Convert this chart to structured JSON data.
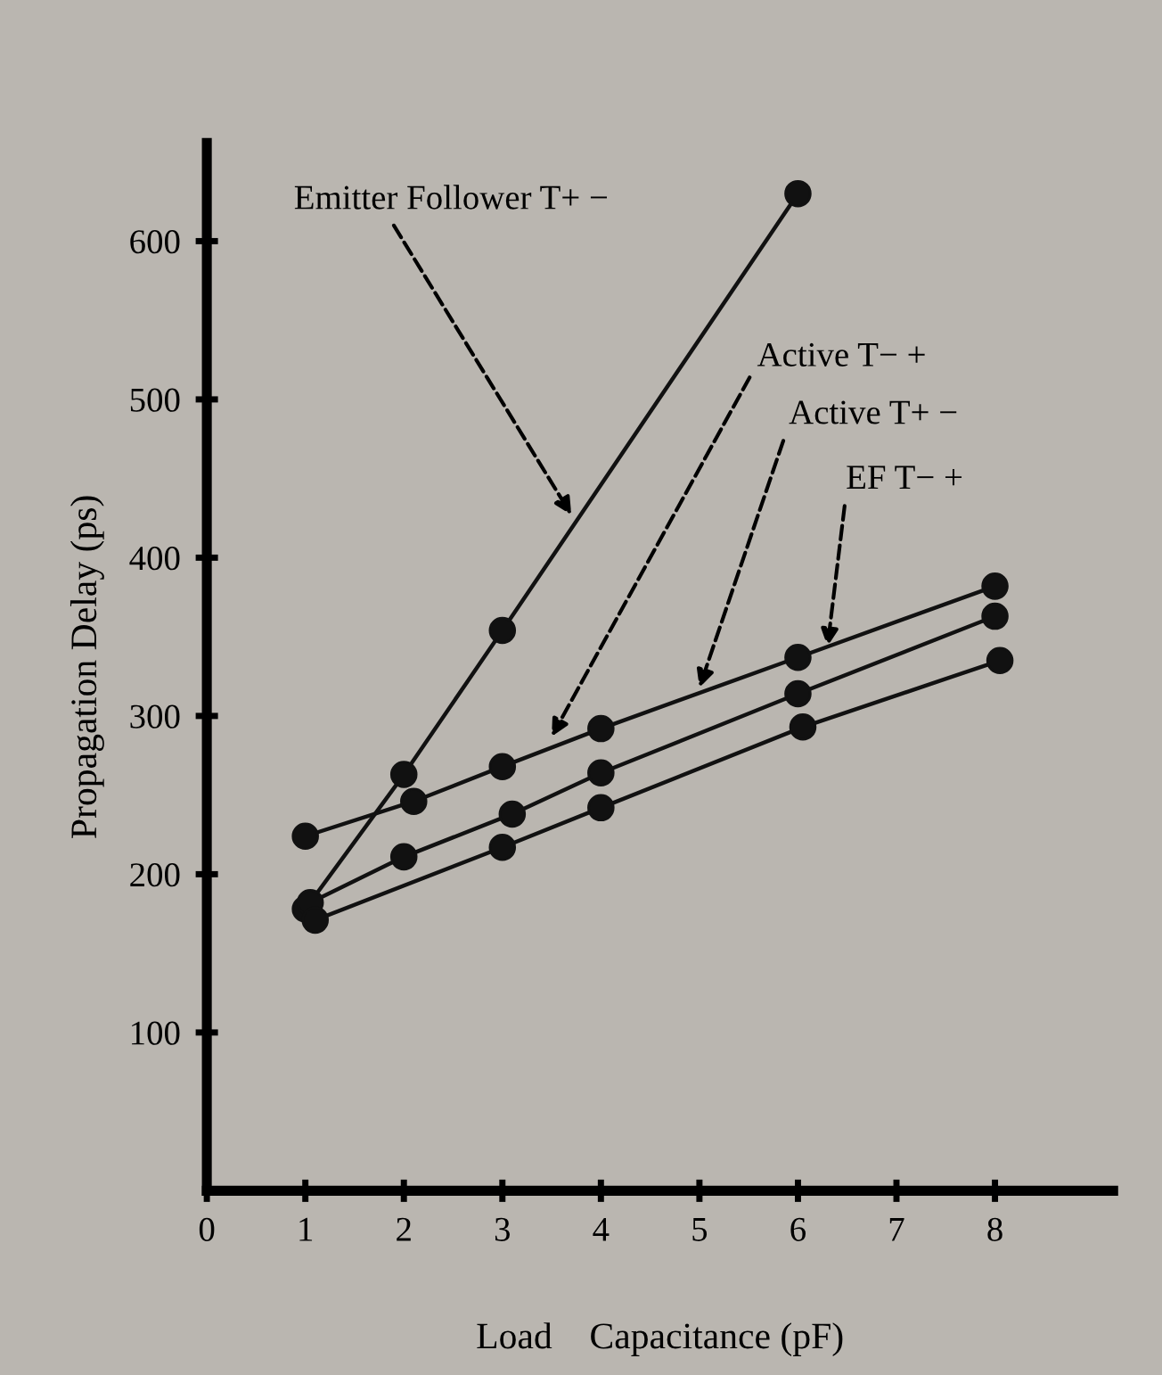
{
  "chart_data": {
    "type": "line",
    "xlabel": "Load    Capacitance (pF)",
    "ylabel": "Propagation Delay (ps)",
    "xlim": [
      0,
      9.2
    ],
    "ylim": [
      0,
      662
    ],
    "xticks": [
      0,
      1,
      2,
      3,
      4,
      5,
      6,
      7,
      8
    ],
    "yticks": [
      100,
      200,
      300,
      400,
      500,
      600
    ],
    "marker": "circle",
    "line_style": "solid",
    "grid": false,
    "legend": false,
    "series": [
      {
        "color": "#111111",
        "x": [
          1,
          2,
          3,
          6
        ],
        "values": [
          178,
          263,
          354,
          630
        ]
      },
      {
        "color": "#111111",
        "x": [
          1,
          2.1,
          3,
          4,
          6,
          8
        ],
        "values": [
          224,
          246,
          268,
          292,
          337,
          382
        ]
      },
      {
        "color": "#111111",
        "x": [
          1.05,
          2,
          3.1,
          4,
          6,
          8
        ],
        "values": [
          182,
          211,
          238,
          264,
          314,
          363
        ]
      },
      {
        "color": "#111111",
        "x": [
          1.1,
          3,
          4,
          6.05,
          8.05
        ],
        "values": [
          171,
          217,
          242,
          293,
          335
        ]
      }
    ],
    "annotations": [
      {
        "text": "Emitter Follower T+ −",
        "x": 3.7,
        "y": 427
      },
      {
        "text": "Active T− +",
        "x": 3.5,
        "y": 287
      },
      {
        "text": "Active T+ −",
        "x": 5.0,
        "y": 318
      },
      {
        "text": "EF T− +",
        "x": 6.3,
        "y": 344
      }
    ]
  }
}
